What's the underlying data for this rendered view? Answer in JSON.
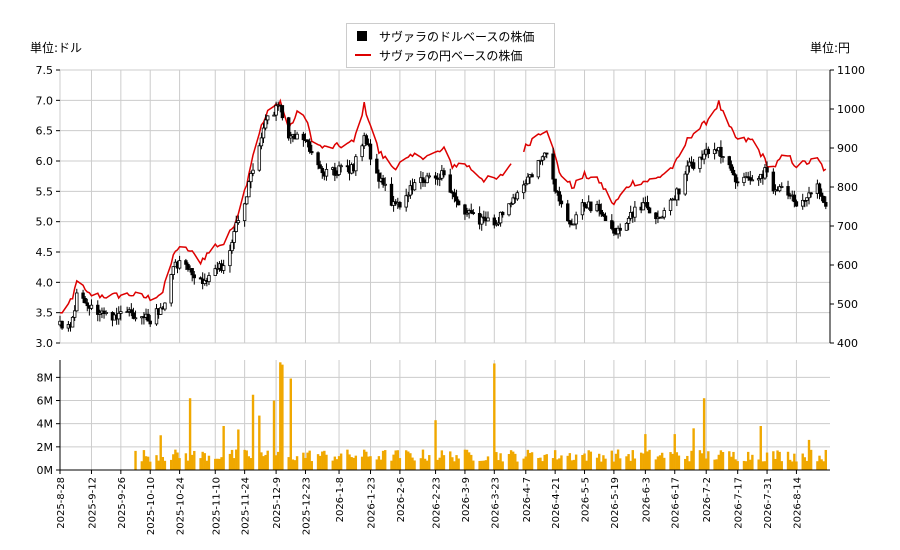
{
  "chart_data": [
    {
      "type": "candlestick",
      "series": [
        {
          "name": "サヴァラのドルベースの株価",
          "color": "#000000",
          "checkpoints": [
            [
              "2025-08-28",
              3.3
            ],
            [
              "2025-09-03",
              3.35
            ],
            [
              "2025-09-05",
              3.8
            ],
            [
              "2025-09-10",
              3.6
            ],
            [
              "2025-09-20",
              3.45
            ],
            [
              "2025-10-01",
              3.5
            ],
            [
              "2025-10-10",
              3.4
            ],
            [
              "2025-10-16",
              3.6
            ],
            [
              "2025-10-22",
              4.3
            ],
            [
              "2025-10-28",
              4.3
            ],
            [
              "2025-11-03",
              4.0
            ],
            [
              "2025-11-10",
              4.2
            ],
            [
              "2025-11-15",
              4.3
            ],
            [
              "2025-11-20",
              4.9
            ],
            [
              "2025-11-24",
              5.3
            ],
            [
              "2025-11-30",
              6.2
            ],
            [
              "2025-12-05",
              6.7
            ],
            [
              "2025-12-11",
              6.9
            ],
            [
              "2025-12-15",
              6.4
            ],
            [
              "2025-12-21",
              6.5
            ],
            [
              "2025-12-27",
              6.0
            ],
            [
              "2026-01-01",
              5.8
            ],
            [
              "2026-01-08",
              5.85
            ],
            [
              "2026-01-15",
              5.9
            ],
            [
              "2026-01-20",
              6.4
            ],
            [
              "2026-01-27",
              5.7
            ],
            [
              "2026-02-03",
              5.3
            ],
            [
              "2026-02-06",
              5.2
            ],
            [
              "2026-02-13",
              5.65
            ],
            [
              "2026-02-20",
              5.75
            ],
            [
              "2026-02-27",
              5.8
            ],
            [
              "2026-03-03",
              5.4
            ],
            [
              "2026-03-09",
              5.2
            ],
            [
              "2026-03-18",
              5.0
            ],
            [
              "2026-03-25",
              5.05
            ],
            [
              "2026-03-31",
              5.3
            ],
            [
              "2026-04-05",
              5.6
            ],
            [
              "2026-04-12",
              5.9
            ],
            [
              "2026-04-17",
              6.1
            ],
            [
              "2026-04-23",
              5.3
            ],
            [
              "2026-04-29",
              5.0
            ],
            [
              "2026-05-05",
              5.3
            ],
            [
              "2026-05-12",
              5.2
            ],
            [
              "2026-05-19",
              4.8
            ],
            [
              "2026-05-27",
              5.1
            ],
            [
              "2026-06-03",
              5.3
            ],
            [
              "2026-06-08",
              5.0
            ],
            [
              "2026-06-17",
              5.4
            ],
            [
              "2026-06-24",
              5.9
            ],
            [
              "2026-07-01",
              6.1
            ],
            [
              "2026-07-08",
              6.2
            ],
            [
              "2026-07-12",
              5.9
            ],
            [
              "2026-07-17",
              5.7
            ],
            [
              "2026-07-24",
              5.7
            ],
            [
              "2026-07-31",
              5.85
            ],
            [
              "2026-08-03",
              5.5
            ],
            [
              "2026-08-09",
              5.5
            ],
            [
              "2026-08-14",
              5.3
            ],
            [
              "2026-08-24",
              5.55
            ],
            [
              "2026-08-28",
              5.3
            ]
          ]
        },
        {
          "name": "サヴァラの円ベースの株価",
          "color": "#dd0000",
          "checkpoints": [
            [
              "2025-08-28",
              475
            ],
            [
              "2025-09-03",
              510
            ],
            [
              "2025-09-05",
              565
            ],
            [
              "2025-09-10",
              525
            ],
            [
              "2025-09-20",
              520
            ],
            [
              "2025-10-01",
              525
            ],
            [
              "2025-10-10",
              515
            ],
            [
              "2025-10-16",
              530
            ],
            [
              "2025-10-22",
              640
            ],
            [
              "2025-10-28",
              640
            ],
            [
              "2025-11-03",
              610
            ],
            [
              "2025-11-10",
              650
            ],
            [
              "2025-11-15",
              655
            ],
            [
              "2025-11-20",
              720
            ],
            [
              "2025-11-24",
              790
            ],
            [
              "2025-11-30",
              930
            ],
            [
              "2025-12-05",
              990
            ],
            [
              "2025-12-11",
              1020
            ],
            [
              "2025-12-15",
              950
            ],
            [
              "2025-12-21",
              1005
            ],
            [
              "2025-12-27",
              910
            ],
            [
              "2026-01-01",
              900
            ],
            [
              "2026-01-08",
              905
            ],
            [
              "2026-01-15",
              915
            ],
            [
              "2026-01-20",
              1010
            ],
            [
              "2026-01-27",
              890
            ],
            [
              "2026-02-03",
              850
            ],
            [
              "2026-02-06",
              860
            ],
            [
              "2026-02-13",
              880
            ],
            [
              "2026-02-20",
              880
            ],
            [
              "2026-02-27",
              895
            ],
            [
              "2026-03-03",
              855
            ],
            [
              "2026-03-09",
              860
            ],
            [
              "2026-03-18",
              820
            ],
            [
              "2026-03-25",
              820
            ],
            [
              "2026-03-31",
              860
            ],
            [
              "2026-04-05",
              890
            ],
            [
              "2026-04-12",
              935
            ],
            [
              "2026-04-17",
              950
            ],
            [
              "2026-04-23",
              840
            ],
            [
              "2026-04-29",
              800
            ],
            [
              "2026-05-05",
              830
            ],
            [
              "2026-05-12",
              815
            ],
            [
              "2026-05-19",
              755
            ],
            [
              "2026-05-27",
              810
            ],
            [
              "2026-06-03",
              815
            ],
            [
              "2026-06-08",
              820
            ],
            [
              "2026-06-17",
              855
            ],
            [
              "2026-06-24",
              930
            ],
            [
              "2026-07-01",
              960
            ],
            [
              "2026-07-08",
              1015
            ],
            [
              "2026-07-12",
              960
            ],
            [
              "2026-07-17",
              920
            ],
            [
              "2026-07-24",
              920
            ],
            [
              "2026-07-31",
              860
            ],
            [
              "2026-08-03",
              850
            ],
            [
              "2026-08-09",
              885
            ],
            [
              "2026-08-14",
              855
            ],
            [
              "2026-08-24",
              870
            ],
            [
              "2026-08-28",
              840
            ]
          ]
        }
      ],
      "y_left": {
        "label": "単位:ドル",
        "range": [
          3.0,
          7.5
        ],
        "ticks": [
          "3.0",
          "3.5",
          "4.0",
          "4.5",
          "5.0",
          "5.5",
          "6.0",
          "6.5",
          "7.0",
          "7.5"
        ]
      },
      "y_right": {
        "label": "単位:円",
        "range": [
          400,
          1100
        ],
        "ticks": [
          "400",
          "500",
          "600",
          "700",
          "800",
          "900",
          "1000",
          "1100"
        ]
      },
      "grid": true,
      "legend_position": "top-center",
      "gap": [
        "2026-04-01",
        "2026-04-05"
      ]
    },
    {
      "type": "bar",
      "color": "#f0a800",
      "y_range": [
        0,
        9500000
      ],
      "y_ticks": [
        "0M",
        "2M",
        "4M",
        "6M",
        "8M"
      ],
      "volume_start": "2025-10-03",
      "base_level_m": 1.2,
      "spikes_m": [
        [
          "2025-10-15",
          3.0
        ],
        [
          "2025-10-29",
          6.2
        ],
        [
          "2025-11-14",
          3.8
        ],
        [
          "2025-11-21",
          3.5
        ],
        [
          "2025-11-28",
          6.5
        ],
        [
          "2025-12-01",
          4.7
        ],
        [
          "2025-12-08",
          6.0
        ],
        [
          "2025-12-11",
          9.3
        ],
        [
          "2025-12-12",
          9.1
        ],
        [
          "2025-12-16",
          7.9
        ],
        [
          "2026-02-23",
          4.3
        ],
        [
          "2026-03-23",
          9.2
        ],
        [
          "2026-06-03",
          3.1
        ],
        [
          "2026-06-17",
          3.1
        ],
        [
          "2026-06-26",
          3.6
        ],
        [
          "2026-07-01",
          6.2
        ],
        [
          "2026-07-25",
          3.4
        ],
        [
          "2026-07-28",
          3.8
        ],
        [
          "2026-08-20",
          2.6
        ]
      ]
    }
  ],
  "x_axis": {
    "ticks": [
      "2025-8-28",
      "2025-9-12",
      "2025-9-26",
      "2025-10-10",
      "2025-10-24",
      "2025-11-10",
      "2025-11-24",
      "2025-12-9",
      "2025-12-23",
      "2026-1-8",
      "2026-1-23",
      "2026-2-6",
      "2026-2-23",
      "2026-3-9",
      "2026-3-23",
      "2026-4-7",
      "2026-4-21",
      "2026-5-5",
      "2026-5-19",
      "2026-6-3",
      "2026-6-17",
      "2026-7-2",
      "2026-7-17",
      "2026-7-31",
      "2026-8-14"
    ],
    "range": [
      "2025-08-28",
      "2026-08-30"
    ]
  },
  "legend": {
    "dollar_label": "サヴァラのドルベースの株価",
    "yen_label": "サヴァラの円ベースの株価"
  },
  "units": {
    "left": "単位:ドル",
    "right": "単位:円"
  },
  "colors": {
    "dollar": "#000000",
    "yen": "#dd0000",
    "volume": "#f0a800",
    "grid": "#cccccc"
  }
}
